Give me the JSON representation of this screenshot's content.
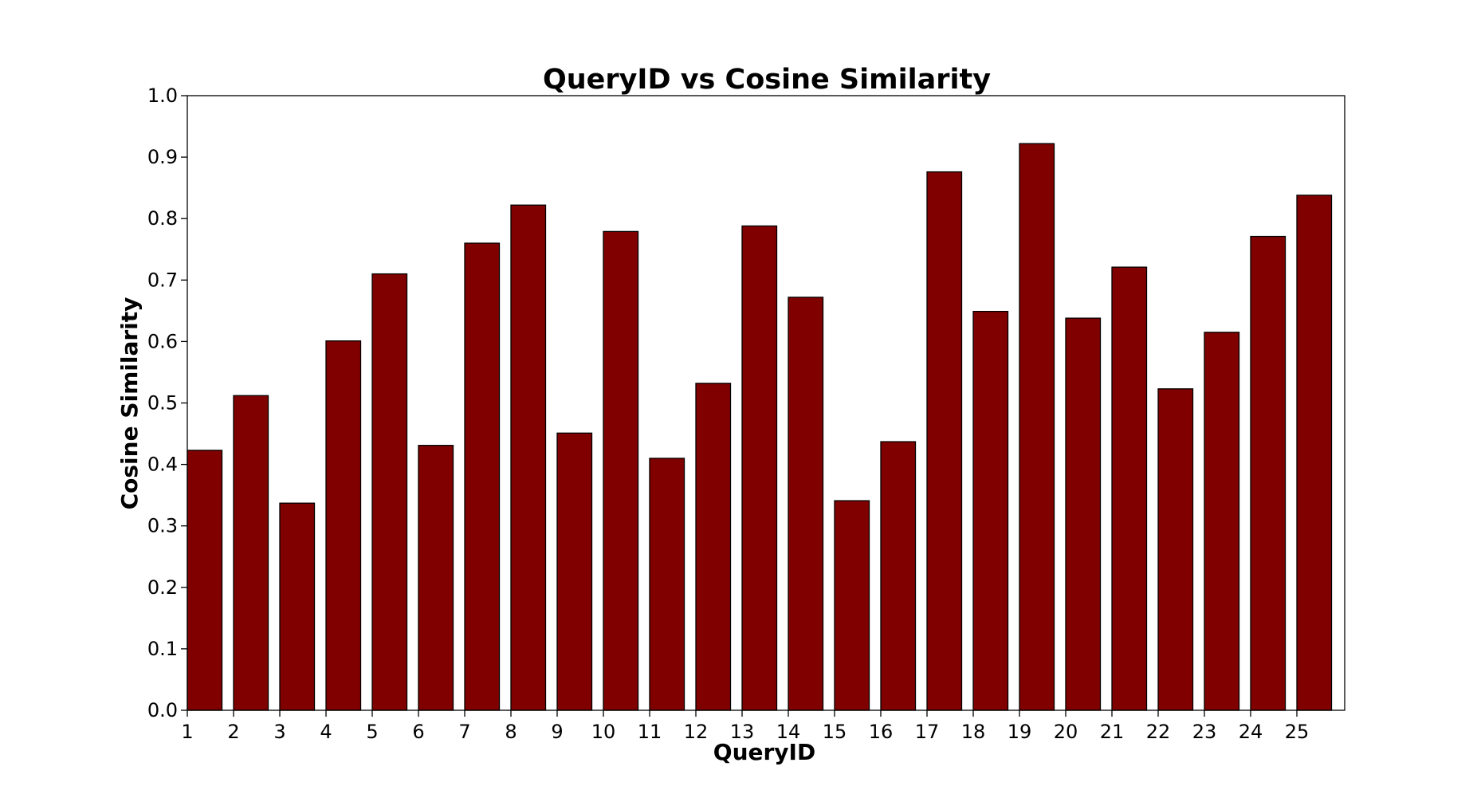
{
  "chart_data": {
    "type": "bar",
    "title": "QueryID vs Cosine Similarity",
    "xlabel": "QueryID",
    "ylabel": "Cosine Similarity",
    "categories": [
      "1",
      "2",
      "3",
      "4",
      "5",
      "6",
      "7",
      "8",
      "9",
      "10",
      "11",
      "12",
      "13",
      "14",
      "15",
      "16",
      "17",
      "18",
      "19",
      "20",
      "21",
      "22",
      "23",
      "24",
      "25"
    ],
    "values": [
      0.423,
      0.512,
      0.337,
      0.601,
      0.71,
      0.431,
      0.76,
      0.822,
      0.451,
      0.779,
      0.41,
      0.532,
      0.788,
      0.672,
      0.341,
      0.437,
      0.876,
      0.649,
      0.922,
      0.638,
      0.721,
      0.523,
      0.615,
      0.771,
      0.838
    ],
    "ylim": [
      0,
      1.0
    ],
    "yticks": [
      "0.0",
      "0.1",
      "0.2",
      "0.3",
      "0.4",
      "0.5",
      "0.6",
      "0.7",
      "0.8",
      "0.9",
      "1.0"
    ],
    "bar_color": "#800000",
    "edge_color": "#000000",
    "grid": false,
    "legend": "none"
  }
}
